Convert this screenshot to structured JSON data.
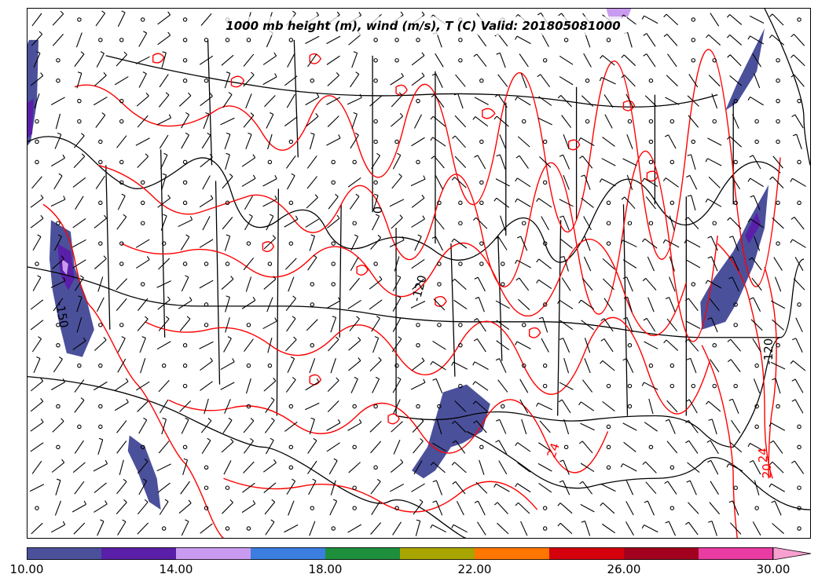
{
  "map": {
    "title": "1000 mb height (m), wind (m/s), T (C) Valid: 201805081000",
    "region": "Continental United States",
    "height_contour_color": "#000000",
    "temperature_contour_color": "#ff0000",
    "contour_labels": [
      {
        "text": "-120",
        "color": "#000000"
      },
      {
        "text": "-150",
        "color": "#000000"
      },
      {
        "text": "-120",
        "color": "#000000"
      },
      {
        "text": "24",
        "color": "#ff0000"
      },
      {
        "text": "24",
        "color": "#ff0000"
      },
      {
        "text": "20",
        "color": "#ff0000"
      },
      {
        "text": "0",
        "color": "#000000"
      }
    ]
  },
  "colorbar": {
    "extend": "max",
    "bounds": [
      10,
      12,
      14,
      16,
      18,
      20,
      22,
      24,
      26,
      28,
      30
    ],
    "colors": [
      "#4b509b",
      "#5a1fa8",
      "#c99bf0",
      "#3b7ee0",
      "#1e8f3c",
      "#a8a400",
      "#ff7600",
      "#d4000c",
      "#a2001e",
      "#ea3ba2"
    ],
    "extend_color": "#f7a0cf",
    "tick_labels": [
      "10.00",
      "14.00",
      "18.00",
      "22.00",
      "26.00",
      "30.00"
    ]
  }
}
